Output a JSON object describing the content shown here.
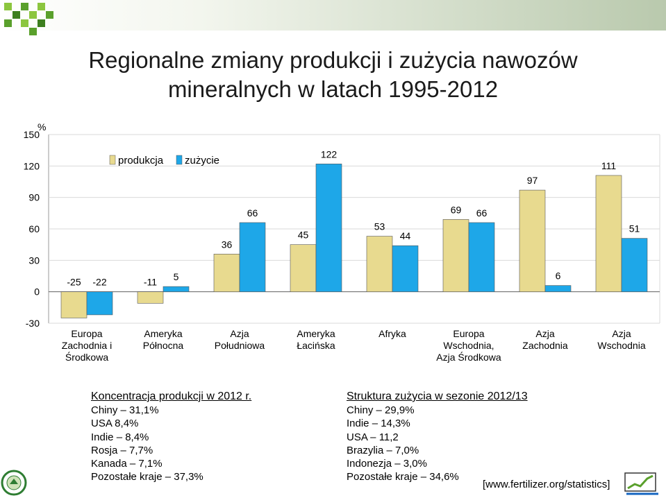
{
  "title_line1": "Regionalne zmiany produkcji i zużycia nawozów",
  "title_line2": "mineralnych w latach 1995-2012",
  "colors": {
    "produkcja": "#e8da8f",
    "zuzycie": "#1ea7e8",
    "grid": "#d9d9d9",
    "bar_stroke": "#555555"
  },
  "chart_data": {
    "type": "bar",
    "unit_label": "%",
    "ylim": [
      -30,
      150
    ],
    "yticks": [
      -30,
      0,
      30,
      60,
      90,
      120,
      150
    ],
    "grid": true,
    "legend_position": "top-left",
    "categories": [
      [
        "Europa",
        "Zachodnia    i",
        "Środkowa"
      ],
      [
        "Ameryka",
        "Północna"
      ],
      [
        "Azja",
        "Południowa"
      ],
      [
        "Ameryka",
        "Łacińska"
      ],
      [
        "Afryka"
      ],
      [
        "Europa",
        "Wschodnia,",
        "Azja Środkowa"
      ],
      [
        "Azja",
        "Zachodnia"
      ],
      [
        "Azja",
        "Wschodnia"
      ]
    ],
    "series": [
      {
        "name": "produkcja",
        "values": [
          -25,
          -11,
          36,
          45,
          53,
          69,
          97,
          111
        ]
      },
      {
        "name": "zużycie",
        "values": [
          -22,
          5,
          66,
          122,
          44,
          66,
          6,
          51
        ]
      }
    ]
  },
  "panel_left": {
    "heading": "Koncentracja produkcji w 2012 r.",
    "lines": [
      "Chiny – 31,1%",
      "USA  8,4%",
      "Indie – 8,4%",
      "Rosja – 7,7%",
      "Kanada – 7,1%",
      "Pozostałe kraje – 37,3%"
    ]
  },
  "panel_right": {
    "heading": "Struktura zużycia w sezonie 2012/13",
    "lines": [
      "Chiny – 29,9%",
      "Indie – 14,3%",
      "USA – 11,2",
      "Brazylia – 7,0%",
      "Indonezja – 3,0%",
      "Pozostałe kraje – 34,6%"
    ]
  },
  "source": "[www.fertilizer.org/statistics]"
}
